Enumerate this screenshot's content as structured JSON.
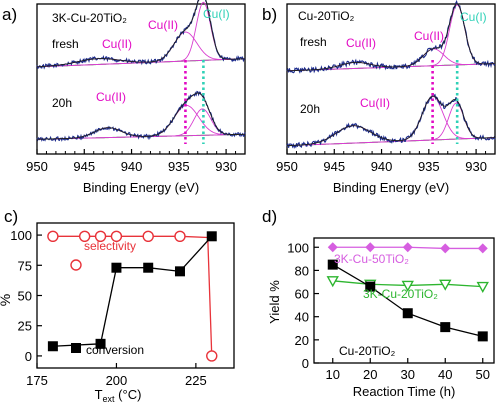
{
  "figure": {
    "panels": [
      "a)",
      "b)",
      "c)",
      "d)"
    ]
  },
  "chart_data": [
    {
      "id": "a",
      "type": "line",
      "panel_label": "a)",
      "title": "3K-Cu-20TiO₂",
      "xlabel": "Binding Energy (eV)",
      "xlim": [
        950,
        928
      ],
      "x_ticks": [
        950,
        945,
        940,
        935,
        930
      ],
      "reversed_x": true,
      "spectra": [
        {
          "name": "fresh",
          "peaks": [
            {
              "center": 943.5,
              "amp": 0.1,
              "width": 2.2
            },
            {
              "center": 934.3,
              "amp": 0.5,
              "width": 1.2
            },
            {
              "center": 932.4,
              "amp": 1.0,
              "width": 0.75
            }
          ],
          "baseline_start": 0.02,
          "baseline_end": 0.16,
          "noise": 0.035
        },
        {
          "name": "20h",
          "peaks": [
            {
              "center": 942.5,
              "amp": 0.18,
              "width": 1.4
            },
            {
              "center": 934.2,
              "amp": 0.55,
              "width": 1.3
            },
            {
              "center": 932.5,
              "amp": 0.48,
              "width": 0.9
            }
          ],
          "baseline_start": 0.05,
          "baseline_end": 0.14,
          "noise": 0.035
        }
      ],
      "markers": [
        {
          "label": "Cu(II)",
          "x": 934.3,
          "color": "#e20ac4"
        },
        {
          "label": "Cu(I)",
          "x": 932.4,
          "color": "#2fd1b7"
        }
      ],
      "annotations": [
        {
          "text": "3K-Cu-20TiO₂",
          "color": "#000000"
        },
        {
          "text": "fresh",
          "color": "#000000"
        },
        {
          "text": "Cu(II)",
          "color": "#e20ac4"
        },
        {
          "text": "Cu(II)",
          "color": "#e20ac4"
        },
        {
          "text": "Cu(I)",
          "color": "#2fd1b7"
        },
        {
          "text": "20h",
          "color": "#000000"
        },
        {
          "text": "Cu(II)",
          "color": "#e20ac4"
        }
      ]
    },
    {
      "id": "b",
      "type": "line",
      "panel_label": "b)",
      "title": "Cu-20TiO₂",
      "xlabel": "Binding Energy (eV)",
      "xlim": [
        950,
        928
      ],
      "x_ticks": [
        950,
        945,
        940,
        935,
        930
      ],
      "reversed_x": true,
      "spectra": [
        {
          "name": "fresh",
          "peaks": [
            {
              "center": 942.8,
              "amp": 0.1,
              "width": 1.6
            },
            {
              "center": 934.5,
              "amp": 0.28,
              "width": 1.1
            },
            {
              "center": 932.0,
              "amp": 1.0,
              "width": 0.8
            }
          ],
          "baseline_start": 0.02,
          "baseline_end": 0.14,
          "noise": 0.04
        },
        {
          "name": "20h",
          "peaks": [
            {
              "center": 943.0,
              "amp": 0.3,
              "width": 1.8
            },
            {
              "center": 934.6,
              "amp": 0.75,
              "width": 1.1
            },
            {
              "center": 932.1,
              "amp": 0.62,
              "width": 0.8
            }
          ],
          "baseline_start": 0.04,
          "baseline_end": 0.18,
          "noise": 0.04
        }
      ],
      "markers": [
        {
          "label": "Cu(II)",
          "x": 934.6,
          "color": "#e20ac4"
        },
        {
          "label": "Cu(I)",
          "x": 932.0,
          "color": "#2fd1b7"
        }
      ],
      "annotations": [
        {
          "text": "Cu-20TiO₂",
          "color": "#000000"
        },
        {
          "text": "fresh",
          "color": "#000000"
        },
        {
          "text": "Cu(II)",
          "color": "#e20ac4"
        },
        {
          "text": "Cu(II)",
          "color": "#e20ac4"
        },
        {
          "text": "Cu(I)",
          "color": "#2fd1b7"
        },
        {
          "text": "20h",
          "color": "#000000"
        },
        {
          "text": "Cu(II)",
          "color": "#e20ac4"
        }
      ]
    },
    {
      "id": "c",
      "type": "line",
      "panel_label": "c)",
      "xlabel": "T",
      "xlabel_sub": "ext",
      "xlabel_unit": "(°C)",
      "ylabel": "%",
      "xlim": [
        175,
        237
      ],
      "ylim": [
        -10,
        110
      ],
      "x_ticks": [
        175,
        200,
        225
      ],
      "y_ticks": [
        0,
        25,
        50,
        75,
        100
      ],
      "series": [
        {
          "name": "selectivity",
          "color": "#e8333a",
          "marker": "circle-open",
          "x": [
            180,
            190,
            195,
            200,
            210,
            220,
            230
          ],
          "y": [
            99,
            99,
            99,
            99,
            99,
            99,
            98
          ]
        },
        {
          "name": "selectivity",
          "color": "#e8333a",
          "marker": "circle-open",
          "x": [
            230
          ],
          "y": [
            0
          ],
          "hidden_line": true
        },
        {
          "name": "conversion",
          "color": "#000000",
          "marker": "square-filled",
          "x": [
            180,
            195,
            200,
            210,
            220,
            230
          ],
          "y": [
            8,
            10,
            73,
            73,
            70,
            99
          ]
        }
      ],
      "legend": [
        {
          "name": "selectivity",
          "color": "#e8333a"
        },
        {
          "name": "conversion",
          "color": "#000000"
        }
      ]
    },
    {
      "id": "d",
      "type": "line",
      "panel_label": "d)",
      "xlabel": "Reaction  Time (h)",
      "ylabel": "Yield %",
      "xlim": [
        5,
        53
      ],
      "ylim": [
        0,
        108
      ],
      "x_ticks": [
        10,
        20,
        30,
        40,
        50
      ],
      "y_ticks": [
        0,
        20,
        40,
        60,
        80,
        100
      ],
      "series": [
        {
          "name": "3K-Cu-50TiO₂",
          "color": "#d65ee0",
          "marker": "diamond-filled",
          "x": [
            10,
            20,
            30,
            40,
            50
          ],
          "y": [
            100,
            100,
            100,
            99,
            99
          ]
        },
        {
          "name": "3K-Cu-20TiO₂",
          "color": "#2db52f",
          "marker": "triangle-down-open",
          "x": [
            10,
            20,
            30,
            40,
            50
          ],
          "y": [
            71,
            68,
            67,
            68,
            66
          ]
        },
        {
          "name": "Cu-20TiO₂",
          "color": "#000000",
          "marker": "square-filled",
          "x": [
            10,
            20,
            30,
            40,
            50
          ],
          "y": [
            85,
            66,
            43,
            31,
            23
          ]
        }
      ]
    }
  ]
}
